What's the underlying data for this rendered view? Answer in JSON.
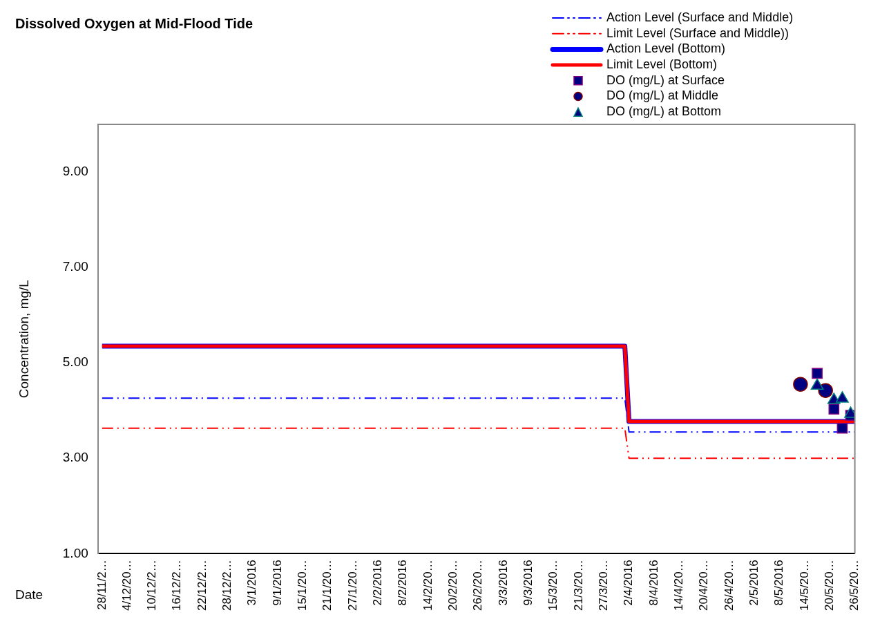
{
  "chart_data": {
    "type": "line",
    "title": "Dissolved Oxygen at Mid-Flood Tide",
    "xlabel": "Date",
    "ylabel": "Concentration, mg/L",
    "xlim": [
      "2015-11-27",
      "2016-05-26"
    ],
    "xticks": [
      {
        "value": "2015-11-28",
        "label": "28/11/2…"
      },
      {
        "value": "2015-12-04",
        "label": "4/12/20…"
      },
      {
        "value": "2015-12-10",
        "label": "10/12/2…"
      },
      {
        "value": "2015-12-16",
        "label": "16/12/2…"
      },
      {
        "value": "2015-12-22",
        "label": "22/12/2…"
      },
      {
        "value": "2015-12-28",
        "label": "28/12/2…"
      },
      {
        "value": "2016-01-03",
        "label": "3/1/2016"
      },
      {
        "value": "2016-01-09",
        "label": "9/1/2016"
      },
      {
        "value": "2016-01-15",
        "label": "15/1/20…"
      },
      {
        "value": "2016-01-21",
        "label": "21/1/20…"
      },
      {
        "value": "2016-01-27",
        "label": "27/1/20…"
      },
      {
        "value": "2016-02-02",
        "label": "2/2/2016"
      },
      {
        "value": "2016-02-08",
        "label": "8/2/2016"
      },
      {
        "value": "2016-02-14",
        "label": "14/2/20…"
      },
      {
        "value": "2016-02-20",
        "label": "20/2/20…"
      },
      {
        "value": "2016-02-26",
        "label": "26/2/20…"
      },
      {
        "value": "2016-03-03",
        "label": "3/3/2016"
      },
      {
        "value": "2016-03-09",
        "label": "9/3/2016"
      },
      {
        "value": "2016-03-15",
        "label": "15/3/20…"
      },
      {
        "value": "2016-03-21",
        "label": "21/3/20…"
      },
      {
        "value": "2016-03-27",
        "label": "27/3/20…"
      },
      {
        "value": "2016-04-02",
        "label": "2/4/2016"
      },
      {
        "value": "2016-04-08",
        "label": "8/4/2016"
      },
      {
        "value": "2016-04-14",
        "label": "14/4/20…"
      },
      {
        "value": "2016-04-20",
        "label": "20/4/20…"
      },
      {
        "value": "2016-04-26",
        "label": "26/4/20…"
      },
      {
        "value": "2016-05-02",
        "label": "2/5/2016"
      },
      {
        "value": "2016-05-08",
        "label": "8/5/2016"
      },
      {
        "value": "2016-05-14",
        "label": "14/5/20…"
      },
      {
        "value": "2016-05-20",
        "label": "20/5/20…"
      },
      {
        "value": "2016-05-26",
        "label": "26/5/20…"
      }
    ],
    "ylim": [
      1,
      10
    ],
    "yticks": [
      {
        "value": 1,
        "label": "1.00"
      },
      {
        "value": 3,
        "label": "3.00"
      },
      {
        "value": 5,
        "label": "5.00"
      },
      {
        "value": 7,
        "label": "7.00"
      },
      {
        "value": 9,
        "label": "9.00"
      }
    ],
    "legend": "top right",
    "grid": false,
    "series": [
      {
        "name": "Action Level (Surface and Middle)",
        "color": "#0000ff",
        "line_style": "dashed",
        "marker": "none",
        "x": [
          "2015-11-28",
          "2016-04-01",
          "2016-04-02",
          "2016-05-26"
        ],
        "values": [
          4.26,
          4.26,
          3.55,
          3.55
        ]
      },
      {
        "name": "Limit Level (Surface and Middle))",
        "color": "#ff0000",
        "line_style": "dashed",
        "marker": "none",
        "x": [
          "2015-11-28",
          "2016-04-01",
          "2016-04-02",
          "2016-05-26"
        ],
        "values": [
          3.63,
          3.63,
          3.0,
          3.0
        ]
      },
      {
        "name": "Action Level (Bottom)",
        "color": "#0000ff",
        "line_style": "solid",
        "marker": "none",
        "x": [
          "2015-11-28",
          "2016-04-01",
          "2016-04-02",
          "2016-05-26"
        ],
        "values": [
          5.35,
          5.35,
          3.77,
          3.77
        ]
      },
      {
        "name": "Limit Level (Bottom)",
        "color": "#ff0000",
        "line_style": "solid",
        "marker": "none",
        "x": [
          "2015-11-28",
          "2016-04-01",
          "2016-04-02",
          "2016-05-26"
        ],
        "values": [
          5.35,
          5.35,
          3.77,
          3.77
        ]
      },
      {
        "name": "DO (mg/L) at Surface",
        "type": "scatter",
        "color": "#000080",
        "marker": "square",
        "x": [
          "2016-05-17",
          "2016-05-21",
          "2016-05-23",
          "2016-05-25"
        ],
        "values": [
          4.78,
          4.03,
          3.63,
          3.9
        ]
      },
      {
        "name": "DO (mg/L) at Middle",
        "type": "scatter",
        "color": "#000080",
        "marker": "circle",
        "x": [
          "2016-05-13",
          "2016-05-19"
        ],
        "values": [
          4.55,
          4.42
        ]
      },
      {
        "name": "DO (mg/L) at Bottom",
        "type": "scatter",
        "color": "#000080",
        "marker": "triangle",
        "x": [
          "2016-05-17",
          "2016-05-21",
          "2016-05-23",
          "2016-05-25"
        ],
        "values": [
          4.52,
          4.22,
          4.25,
          3.93
        ]
      }
    ]
  }
}
